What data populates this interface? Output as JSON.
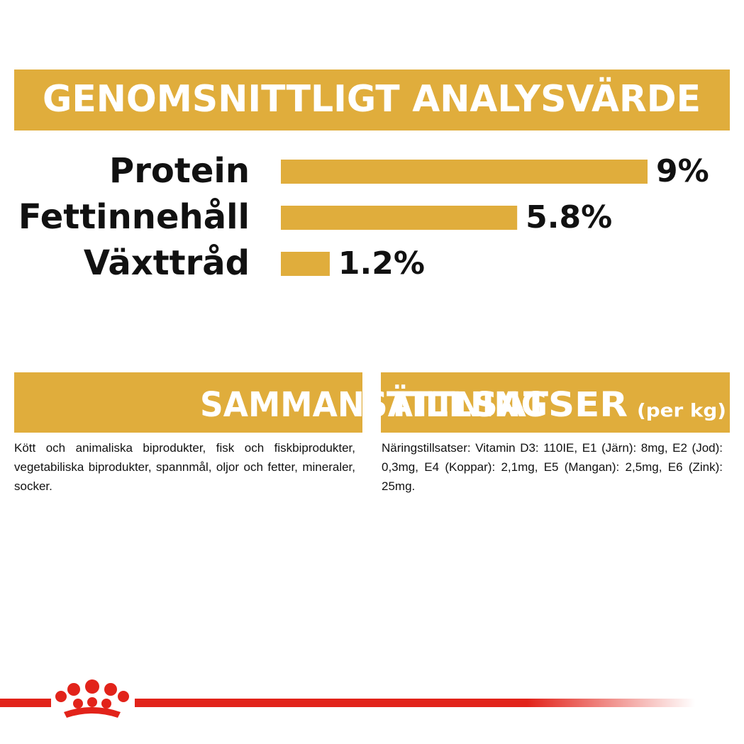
{
  "header": {
    "title": "GENOMSNITTLIGT ANALYSVÄRDE"
  },
  "chart_data": {
    "type": "bar",
    "orientation": "horizontal",
    "categories": [
      "Protein",
      "Fettinnehåll",
      "Växttråd"
    ],
    "values": [
      9,
      5.8,
      1.2
    ],
    "value_labels": [
      "9%",
      "5.8%",
      "1.2%"
    ],
    "color": "#e0ad3c"
  },
  "sections": [
    {
      "title": "SAMMANSÄTTNING",
      "text": "Kött och animaliska biprodukter, fisk och fiskbiprodukter, vegetabiliska biprodukter, spannmål, oljor och fetter, mineraler, socker."
    },
    {
      "title": "TILLSATSER",
      "note": "(per kg)",
      "text": "Näringstillsatser: Vitamin D3: 110IE, E1 (Järn): 8mg, E2 (Jod): 0,3mg, E4 (Koppar): 2,1mg, E5 (Mangan): 2,5mg, E6 (Zink): 25mg."
    }
  ]
}
